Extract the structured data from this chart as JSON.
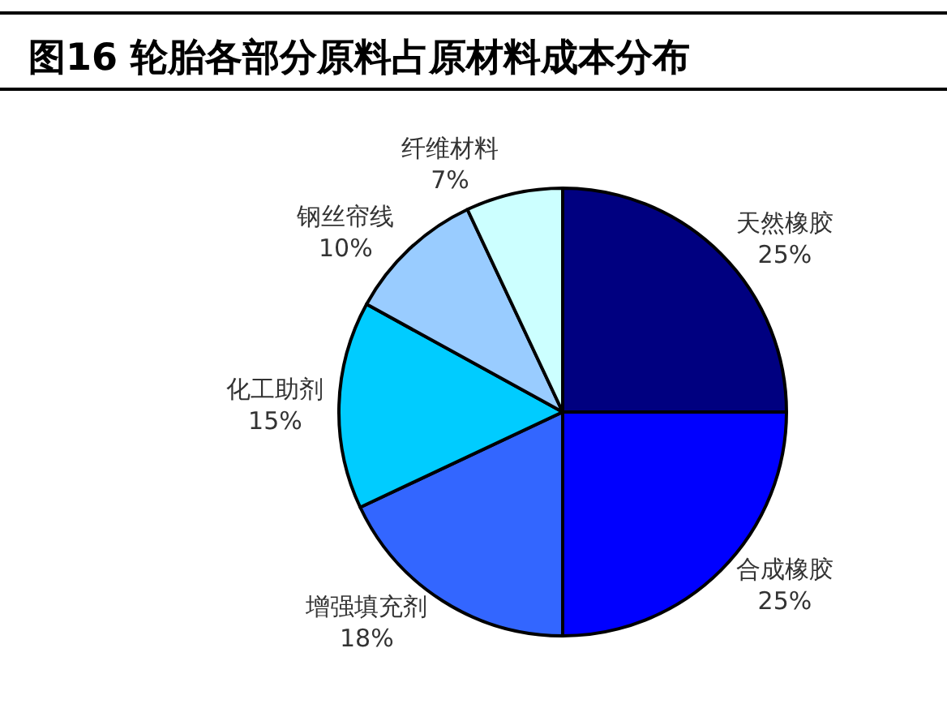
{
  "chart_data": {
    "type": "pie",
    "title": "图16 轮胎各部分原料占原材料成本分布",
    "categories": [
      "天然橡胶",
      "合成橡胶",
      "增强填充剂",
      "化工助剂",
      "钢丝帘线",
      "纤维材料"
    ],
    "values": [
      25,
      25,
      18,
      15,
      10,
      7
    ],
    "colors": [
      "#000080",
      "#0000ff",
      "#3366ff",
      "#00ccff",
      "#99ccff",
      "#ccffff"
    ],
    "value_labels": [
      "25%",
      "25%",
      "18%",
      "15%",
      "10%",
      "7%"
    ]
  }
}
